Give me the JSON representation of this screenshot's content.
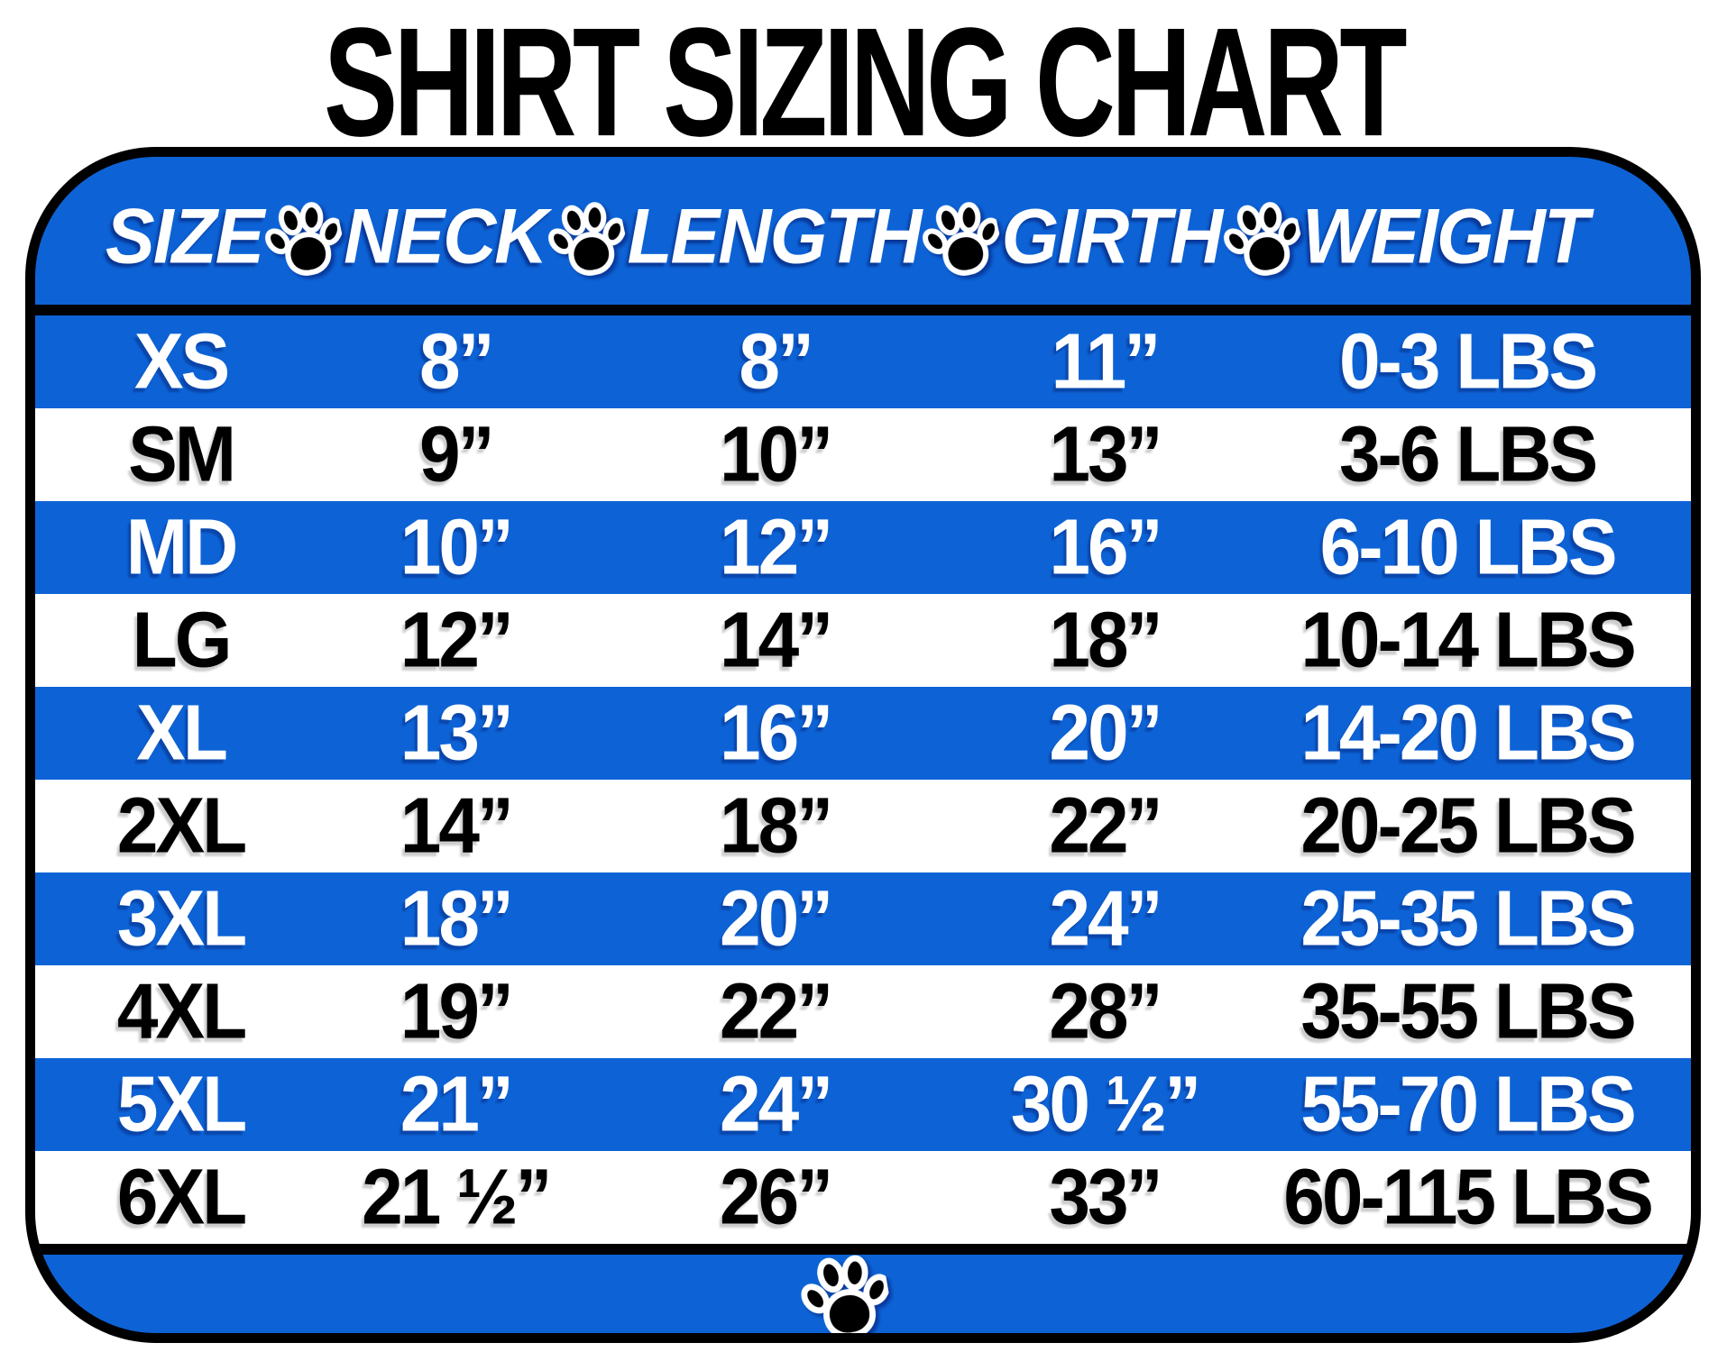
{
  "title": "SHIRT SIZING CHART",
  "colors": {
    "row_blue": "#0d63d6",
    "border_black": "#000000",
    "text_white": "#ffffff",
    "text_black": "#000000"
  },
  "header": {
    "cells": [
      "SIZE",
      "NECK",
      "LENGTH",
      "GIRTH",
      "WEIGHT"
    ],
    "separator_icon": "paw-icon"
  },
  "rows": [
    {
      "cells": [
        "XS",
        "8”",
        "8”",
        "11”",
        "0-3 LBS"
      ]
    },
    {
      "cells": [
        "SM",
        "9”",
        "10”",
        "13”",
        "3-6 LBS"
      ]
    },
    {
      "cells": [
        "MD",
        "10”",
        "12”",
        "16”",
        "6-10 LBS"
      ]
    },
    {
      "cells": [
        "LG",
        "12”",
        "14”",
        "18”",
        "10-14 LBS"
      ]
    },
    {
      "cells": [
        "XL",
        "13”",
        "16”",
        "20”",
        "14-20 LBS"
      ]
    },
    {
      "cells": [
        "2XL",
        "14”",
        "18”",
        "22”",
        "20-25 LBS"
      ]
    },
    {
      "cells": [
        "3XL",
        "18”",
        "20”",
        "24”",
        "25-35 LBS"
      ]
    },
    {
      "cells": [
        "4XL",
        "19”",
        "22”",
        "28”",
        "35-55 LBS"
      ]
    },
    {
      "cells": [
        "5XL",
        "21”",
        "24”",
        "30 ½”",
        "55-70 LBS"
      ]
    },
    {
      "cells": [
        "6XL",
        "21 ½”",
        "26”",
        "33”",
        "60-115 LBS"
      ]
    }
  ],
  "footer": {
    "icon": "paw-icon"
  },
  "chart_data": {
    "type": "table",
    "title": "SHIRT SIZING CHART",
    "columns": [
      "SIZE",
      "NECK",
      "LENGTH",
      "GIRTH",
      "WEIGHT"
    ],
    "rows": [
      [
        "XS",
        "8\"",
        "8\"",
        "11\"",
        "0-3 LBS"
      ],
      [
        "SM",
        "9\"",
        "10\"",
        "13\"",
        "3-6 LBS"
      ],
      [
        "MD",
        "10\"",
        "12\"",
        "16\"",
        "6-10 LBS"
      ],
      [
        "LG",
        "12\"",
        "14\"",
        "18\"",
        "10-14 LBS"
      ],
      [
        "XL",
        "13\"",
        "16\"",
        "20\"",
        "14-20 LBS"
      ],
      [
        "2XL",
        "14\"",
        "18\"",
        "22\"",
        "20-25 LBS"
      ],
      [
        "3XL",
        "18\"",
        "20\"",
        "24\"",
        "25-35 LBS"
      ],
      [
        "4XL",
        "19\"",
        "22\"",
        "28\"",
        "35-55 LBS"
      ],
      [
        "5XL",
        "21\"",
        "24\"",
        "30 1/2\"",
        "55-70 LBS"
      ],
      [
        "6XL",
        "21 1/2\"",
        "26\"",
        "33\"",
        "60-115 LBS"
      ]
    ],
    "layout": {
      "striped": "alternating blue/white starting blue",
      "header_background": "#0d63d6",
      "grid": false
    }
  }
}
